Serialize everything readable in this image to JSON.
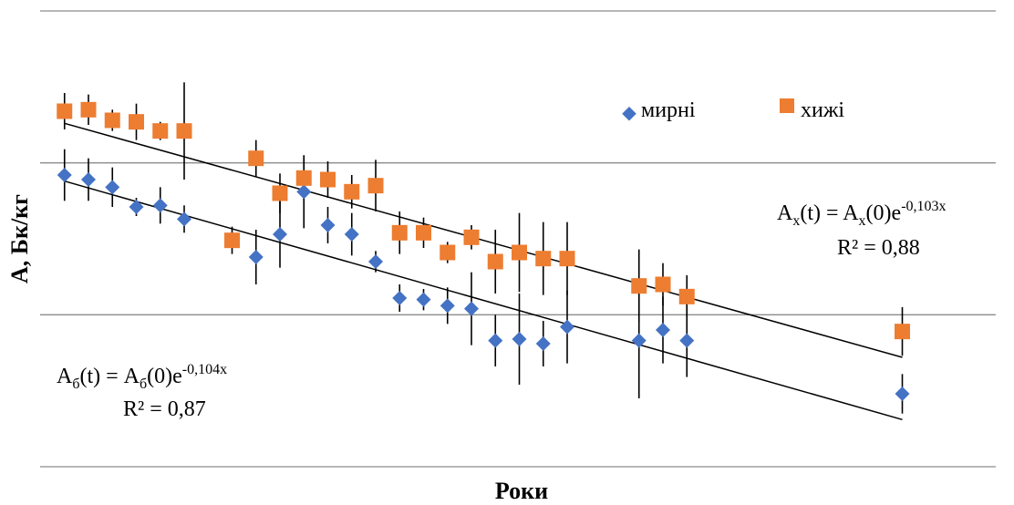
{
  "chart_data": {
    "type": "scatter",
    "title": "",
    "xlabel": "Роки",
    "ylabel": "А, Бк/кг",
    "xlim": [
      0,
      36
    ],
    "ylim": [
      0,
      3
    ],
    "grid": true,
    "legend_position": "top-right",
    "series": [
      {
        "name": "мирні",
        "marker": "diamond",
        "color": "#4472C4",
        "points": [
          {
            "x": 1,
            "y": 1.92,
            "err": 0.17
          },
          {
            "x": 2,
            "y": 1.89,
            "err": 0.14
          },
          {
            "x": 3,
            "y": 1.84,
            "err": 0.13
          },
          {
            "x": 4,
            "y": 1.71,
            "err": 0.06
          },
          {
            "x": 5,
            "y": 1.72,
            "err": 0.12
          },
          {
            "x": 6,
            "y": 1.63,
            "err": 0.09
          },
          {
            "x": 9,
            "y": 1.38,
            "err": 0.18
          },
          {
            "x": 10,
            "y": 1.53,
            "err": 0.22
          },
          {
            "x": 11,
            "y": 1.81,
            "err": 0.24
          },
          {
            "x": 12,
            "y": 1.59,
            "err": 0.12
          },
          {
            "x": 13,
            "y": 1.53,
            "err": 0.14
          },
          {
            "x": 14,
            "y": 1.35,
            "err": 0.07
          },
          {
            "x": 15,
            "y": 1.11,
            "err": 0.09
          },
          {
            "x": 16,
            "y": 1.1,
            "err": 0.07
          },
          {
            "x": 17,
            "y": 1.06,
            "err": 0.12
          },
          {
            "x": 18,
            "y": 1.04,
            "err": 0.24
          },
          {
            "x": 19,
            "y": 0.83,
            "err": 0.17
          },
          {
            "x": 20,
            "y": 0.84,
            "err": 0.3
          },
          {
            "x": 21,
            "y": 0.81,
            "err": 0.15
          },
          {
            "x": 22,
            "y": 0.92,
            "err": 0.24
          },
          {
            "x": 25,
            "y": 0.83,
            "err": 0.38
          },
          {
            "x": 26,
            "y": 0.9,
            "err": 0.22
          },
          {
            "x": 27,
            "y": 0.83,
            "err": 0.24
          },
          {
            "x": 36,
            "y": 0.48,
            "err": 0.13
          }
        ]
      },
      {
        "name": "хижі",
        "marker": "square",
        "color": "#ED7D31",
        "points": [
          {
            "x": 1,
            "y": 2.34,
            "err": 0.12
          },
          {
            "x": 2,
            "y": 2.35,
            "err": 0.1
          },
          {
            "x": 3,
            "y": 2.28,
            "err": 0.07
          },
          {
            "x": 4,
            "y": 2.27,
            "err": 0.12
          },
          {
            "x": 5,
            "y": 2.21,
            "err": 0.06
          },
          {
            "x": 6,
            "y": 2.21,
            "err": 0.32
          },
          {
            "x": 8,
            "y": 1.49,
            "err": 0.09
          },
          {
            "x": 9,
            "y": 2.03,
            "err": 0.12
          },
          {
            "x": 10,
            "y": 1.8,
            "err": 0.13
          },
          {
            "x": 11,
            "y": 1.9,
            "err": 0.15
          },
          {
            "x": 12,
            "y": 1.89,
            "err": 0.12
          },
          {
            "x": 13,
            "y": 1.81,
            "err": 0.11
          },
          {
            "x": 14,
            "y": 1.85,
            "err": 0.17
          },
          {
            "x": 15,
            "y": 1.54,
            "err": 0.14
          },
          {
            "x": 16,
            "y": 1.54,
            "err": 0.1
          },
          {
            "x": 17,
            "y": 1.41,
            "err": 0.07
          },
          {
            "x": 18,
            "y": 1.51,
            "err": 0.08
          },
          {
            "x": 19,
            "y": 1.35,
            "err": 0.21
          },
          {
            "x": 20,
            "y": 1.41,
            "err": 0.26
          },
          {
            "x": 21,
            "y": 1.37,
            "err": 0.24
          },
          {
            "x": 22,
            "y": 1.37,
            "err": 0.24
          },
          {
            "x": 25,
            "y": 1.19,
            "err": 0.24
          },
          {
            "x": 26,
            "y": 1.2,
            "err": 0.14
          },
          {
            "x": 27,
            "y": 1.12,
            "err": 0.14
          },
          {
            "x": 36,
            "y": 0.89,
            "err": 0.16
          }
        ]
      }
    ],
    "trendlines": [
      {
        "series": "хижі",
        "from": {
          "x": 1,
          "y": 2.26
        },
        "to": {
          "x": 36,
          "y": 0.72
        },
        "equation_parts": {
          "pre": "A",
          "sub1": "x",
          "mid": "(t) = A",
          "sub2": "x",
          "post": "(0)e",
          "exp": "-0,103x"
        },
        "r2_label": "R² = 0,88"
      },
      {
        "series": "мирні",
        "from": {
          "x": 1,
          "y": 1.88
        },
        "to": {
          "x": 36,
          "y": 0.31
        },
        "equation_parts": {
          "pre": "A",
          "sub1": "б",
          "mid": "(t) = A",
          "sub2": "б",
          "post": "(0)e",
          "exp": "-0,104x"
        },
        "r2_label": "R² = 0,87"
      }
    ]
  }
}
